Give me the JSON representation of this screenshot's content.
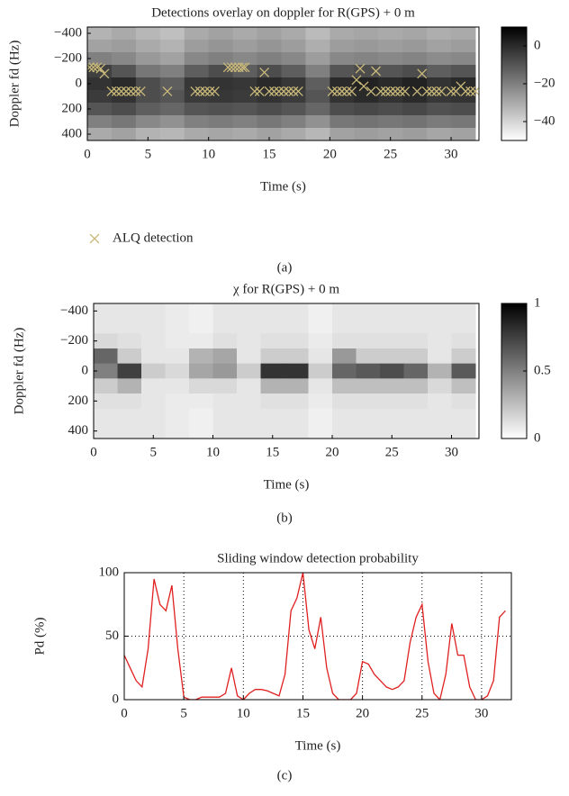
{
  "chart_data": [
    {
      "type": "heatmap",
      "title": "Detections overlay on doppler for R(GPS) + 0 m",
      "xlabel": "Time (s)",
      "ylabel": "Doppler fd (Hz)",
      "caption": "(a)",
      "x": [
        1,
        3,
        5,
        7,
        9,
        11,
        13,
        15,
        17,
        19,
        21,
        23,
        25,
        27,
        29,
        31
      ],
      "y": [
        -400,
        -300,
        -200,
        -100,
        0,
        100,
        200,
        300,
        400
      ],
      "z": [
        [
          -32,
          -30,
          -33,
          -35,
          -30,
          -28,
          -30,
          -28,
          -30,
          -34,
          -30,
          -29,
          -30,
          -29,
          -31,
          -30
        ],
        [
          -28,
          -27,
          -30,
          -32,
          -27,
          -25,
          -27,
          -25,
          -27,
          -31,
          -27,
          -26,
          -27,
          -26,
          -28,
          -27
        ],
        [
          -20,
          -22,
          -26,
          -28,
          -22,
          -20,
          -22,
          -20,
          -22,
          -27,
          -22,
          -21,
          -22,
          -21,
          -23,
          -22
        ],
        [
          -5,
          -10,
          -18,
          -20,
          -12,
          -8,
          -12,
          -8,
          -12,
          -20,
          -10,
          -8,
          -10,
          -8,
          -12,
          -10
        ],
        [
          -2,
          0,
          -8,
          -12,
          -3,
          -2,
          -3,
          0,
          -3,
          -12,
          0,
          2,
          0,
          2,
          -2,
          0
        ],
        [
          -4,
          -2,
          -8,
          -10,
          -4,
          -3,
          -4,
          -2,
          -4,
          -10,
          -2,
          0,
          -2,
          0,
          -3,
          -2
        ],
        [
          -10,
          -8,
          -12,
          -14,
          -10,
          -9,
          -10,
          -8,
          -10,
          -14,
          -8,
          -7,
          -8,
          -7,
          -9,
          -8
        ],
        [
          -20,
          -18,
          -22,
          -24,
          -20,
          -19,
          -20,
          -18,
          -20,
          -24,
          -18,
          -17,
          -18,
          -17,
          -19,
          -18
        ],
        [
          -30,
          -28,
          -32,
          -33,
          -30,
          -29,
          -30,
          -28,
          -30,
          -33,
          -28,
          -27,
          -28,
          -27,
          -29,
          -28
        ]
      ],
      "xlim": [
        0,
        32.3
      ],
      "xticks": [
        0,
        5,
        10,
        15,
        20,
        25,
        30
      ],
      "ylim": [
        -450,
        450
      ],
      "yticks": [
        {
          "value": -400,
          "label": "−400"
        },
        {
          "value": -200,
          "label": "−200"
        },
        0,
        200,
        400
      ],
      "clim": [
        -50,
        10
      ],
      "cticks": [
        0,
        {
          "value": -20,
          "label": "−20"
        },
        {
          "value": -40,
          "label": "−40"
        }
      ],
      "overlay": {
        "type": "scatter",
        "name": "ALQ detection",
        "color": "#c9b97a",
        "x": [
          0.2,
          0.5,
          0.8,
          1.1,
          1.4,
          2.0,
          2.4,
          2.8,
          3.2,
          3.6,
          4.0,
          4.4,
          6.6,
          8.9,
          9.3,
          9.7,
          10.1,
          10.5,
          11.6,
          11.9,
          12.2,
          12.5,
          12.8,
          13.0,
          13.8,
          14.2,
          14.6,
          15.0,
          15.4,
          15.8,
          16.2,
          16.6,
          17.0,
          17.4,
          20.2,
          20.6,
          21.0,
          21.4,
          21.8,
          22.2,
          22.5,
          22.8,
          23.4,
          23.8,
          24.2,
          24.6,
          25.0,
          25.4,
          25.8,
          26.2,
          27.2,
          27.6,
          28.0,
          28.4,
          28.8,
          29.2,
          30.0,
          30.4,
          30.8,
          31.2,
          31.6,
          32.0
        ],
        "y": [
          -130,
          -130,
          -130,
          -120,
          -80,
          60,
          60,
          60,
          60,
          60,
          60,
          60,
          60,
          60,
          60,
          60,
          60,
          60,
          -130,
          -130,
          -130,
          -130,
          -130,
          -130,
          60,
          60,
          -90,
          60,
          60,
          60,
          60,
          60,
          60,
          60,
          60,
          60,
          60,
          60,
          60,
          -30,
          -120,
          20,
          60,
          -100,
          60,
          60,
          60,
          60,
          60,
          60,
          60,
          -80,
          60,
          60,
          60,
          60,
          60,
          60,
          20,
          60,
          60,
          60
        ]
      }
    },
    {
      "type": "heatmap",
      "title": "χ for R(GPS) + 0 m",
      "xlabel": "Time (s)",
      "ylabel": "Doppler fd (Hz)",
      "caption": "(b)",
      "x": [
        1,
        3,
        5,
        7,
        9,
        11,
        13,
        15,
        17,
        19,
        21,
        23,
        25,
        27,
        29,
        31
      ],
      "y": [
        -400,
        -300,
        -200,
        -100,
        0,
        100,
        200,
        300,
        400
      ],
      "z": [
        [
          0.1,
          0.1,
          0.1,
          0.08,
          0.06,
          0.1,
          0.1,
          0.1,
          0.1,
          0.06,
          0.1,
          0.1,
          0.1,
          0.1,
          0.1,
          0.1
        ],
        [
          0.1,
          0.1,
          0.1,
          0.08,
          0.06,
          0.1,
          0.1,
          0.1,
          0.1,
          0.06,
          0.1,
          0.1,
          0.1,
          0.1,
          0.1,
          0.1
        ],
        [
          0.15,
          0.12,
          0.1,
          0.08,
          0.08,
          0.12,
          0.1,
          0.12,
          0.12,
          0.08,
          0.12,
          0.12,
          0.12,
          0.12,
          0.1,
          0.12
        ],
        [
          0.6,
          0.2,
          0.1,
          0.1,
          0.3,
          0.35,
          0.1,
          0.2,
          0.2,
          0.1,
          0.4,
          0.2,
          0.2,
          0.2,
          0.1,
          0.2
        ],
        [
          0.5,
          0.75,
          0.2,
          0.15,
          0.35,
          0.4,
          0.2,
          0.8,
          0.8,
          0.2,
          0.6,
          0.65,
          0.7,
          0.6,
          0.3,
          0.65
        ],
        [
          0.2,
          0.3,
          0.1,
          0.1,
          0.15,
          0.15,
          0.1,
          0.3,
          0.3,
          0.1,
          0.25,
          0.25,
          0.25,
          0.25,
          0.15,
          0.25
        ],
        [
          0.12,
          0.12,
          0.1,
          0.08,
          0.08,
          0.1,
          0.1,
          0.12,
          0.12,
          0.08,
          0.12,
          0.12,
          0.12,
          0.12,
          0.1,
          0.12
        ],
        [
          0.1,
          0.1,
          0.1,
          0.08,
          0.06,
          0.1,
          0.1,
          0.1,
          0.1,
          0.06,
          0.1,
          0.1,
          0.1,
          0.1,
          0.1,
          0.1
        ],
        [
          0.1,
          0.1,
          0.1,
          0.08,
          0.06,
          0.1,
          0.1,
          0.1,
          0.1,
          0.06,
          0.1,
          0.1,
          0.1,
          0.1,
          0.1,
          0.1
        ]
      ],
      "xlim": [
        0,
        32.3
      ],
      "xticks": [
        0,
        5,
        10,
        15,
        20,
        25,
        30
      ],
      "ylim": [
        -450,
        450
      ],
      "yticks": [
        {
          "value": -400,
          "label": "−400"
        },
        {
          "value": -200,
          "label": "−200"
        },
        0,
        200,
        400
      ],
      "clim": [
        0,
        1
      ],
      "cticks": [
        1,
        0.5,
        0
      ]
    },
    {
      "type": "line",
      "title": "Sliding window detection probability",
      "xlabel": "Time (s)",
      "ylabel": "Pd (%)",
      "caption": "(c)",
      "color": "#e02020",
      "grid": true,
      "x": [
        0,
        0.5,
        1,
        1.5,
        2,
        2.5,
        3,
        3.5,
        4,
        4.5,
        5,
        5.5,
        6,
        6.5,
        7,
        7.5,
        8,
        8.5,
        9,
        9.5,
        10,
        10.5,
        11,
        11.5,
        12,
        12.5,
        13,
        13.5,
        14,
        14.5,
        15,
        15.5,
        16,
        16.5,
        17,
        17.5,
        18,
        18.5,
        19,
        19.5,
        20,
        20.5,
        21,
        21.5,
        22,
        22.5,
        23,
        23.5,
        24,
        24.5,
        25,
        25.5,
        26,
        26.5,
        27,
        27.5,
        28,
        28.5,
        29,
        29.5,
        30,
        30.5,
        31,
        31.5,
        32
      ],
      "values": [
        35,
        25,
        15,
        10,
        40,
        95,
        75,
        70,
        90,
        40,
        2,
        0,
        0,
        2,
        2,
        2,
        2,
        5,
        25,
        3,
        0,
        5,
        8,
        8,
        7,
        5,
        3,
        20,
        70,
        80,
        100,
        55,
        40,
        65,
        25,
        5,
        0,
        0,
        0,
        5,
        30,
        28,
        20,
        15,
        10,
        8,
        10,
        15,
        45,
        65,
        75,
        30,
        5,
        0,
        20,
        60,
        35,
        35,
        10,
        0,
        0,
        3,
        15,
        65,
        70
      ],
      "xlim": [
        0,
        32.5
      ],
      "xticks": [
        0,
        5,
        10,
        15,
        20,
        25,
        30
      ],
      "ylim": [
        0,
        100
      ],
      "yticks": [
        0,
        50,
        100
      ]
    }
  ]
}
